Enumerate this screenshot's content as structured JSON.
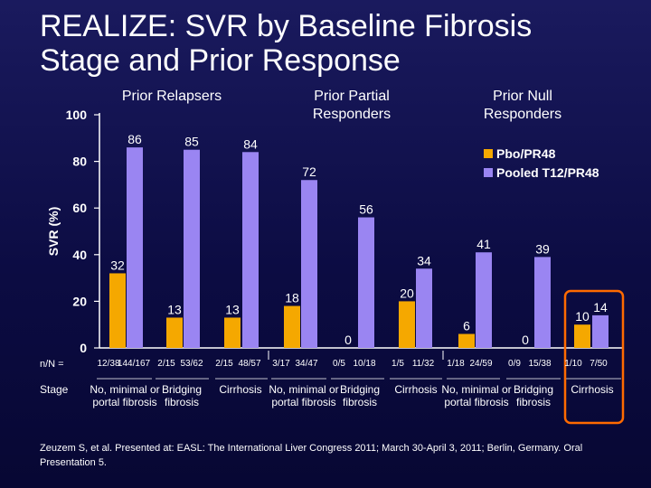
{
  "title_line1": "REALIZE: SVR by Baseline Fibrosis",
  "title_line2": "Stage and Prior Response",
  "groups": [
    "Prior Relapsers",
    "Prior Partial Responders",
    "Prior Null Responders"
  ],
  "row_labels": {
    "nn": "n/N =",
    "stage": "Stage"
  },
  "n_over_N": [
    "12/38",
    "144/167",
    "2/15",
    "53/62",
    "2/15",
    "48/57",
    "3/17",
    "34/47",
    "0/5",
    "10/18",
    "1/5",
    "11/32",
    "1/18",
    "24/59",
    "0/9",
    "15/38",
    "1/10",
    "7/50"
  ],
  "footnote": "Zeuzem S, et al. Presented at: EASL: The International Liver Congress 2011; March 30-April 3, 2011; Berlin, Germany. Oral Presentation 5.",
  "colors": {
    "pbo": "#f5a800",
    "t12": "#9a85f2",
    "highlight": "#ff6a00",
    "axis": "#ffffff"
  },
  "chart_data": {
    "type": "bar",
    "ylabel": "SVR (%)",
    "ylim": [
      0,
      100
    ],
    "yticks": [
      0,
      20,
      40,
      60,
      80,
      100
    ],
    "categories": [
      "No, minimal or portal fibrosis",
      "Bridging fibrosis",
      "Cirrhosis",
      "No, minimal or portal fibrosis",
      "Bridging fibrosis",
      "Cirrhosis",
      "No, minimal or portal fibrosis",
      "Bridging fibrosis",
      "Cirrhosis"
    ],
    "series": [
      {
        "name": "Pbo/PR48",
        "values": [
          32,
          13,
          13,
          18,
          0,
          20,
          6,
          0,
          10
        ]
      },
      {
        "name": "Pooled T12/PR48",
        "values": [
          86,
          85,
          84,
          72,
          56,
          34,
          41,
          39,
          14
        ]
      }
    ],
    "legend_position": "top-right",
    "grid": false
  }
}
